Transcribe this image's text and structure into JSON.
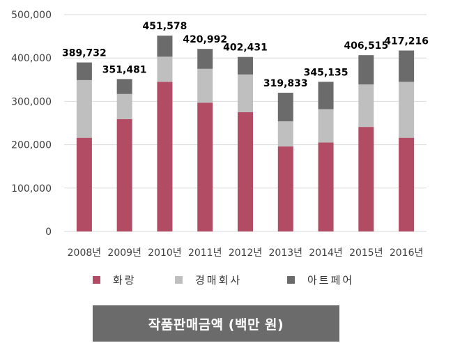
{
  "chart_data": {
    "type": "bar",
    "stacked": true,
    "categories": [
      "2008년",
      "2009년",
      "2010년",
      "2011년",
      "2012년",
      "2013년",
      "2014년",
      "2015년",
      "2016년"
    ],
    "series": [
      {
        "name": "화랑",
        "color": "#b24b64",
        "values": [
          216000,
          259000,
          345000,
          297000,
          275000,
          196000,
          205000,
          241000,
          216000
        ]
      },
      {
        "name": "경매회사",
        "color": "#bfbfbf",
        "values": [
          133000,
          58000,
          58000,
          78000,
          87000,
          58000,
          77000,
          98000,
          129000
        ]
      },
      {
        "name": "아트페어",
        "color": "#6b6b6b",
        "values": [
          40732,
          34481,
          48578,
          45992,
          40431,
          65833,
          63135,
          67515,
          72216
        ]
      }
    ],
    "totals": [
      "389,732",
      "351,481",
      "451,578",
      "420,992",
      "402,431",
      "319,833",
      "345,135",
      "406,515",
      "417,216"
    ],
    "yticks": [
      "0",
      "100,000",
      "200,000",
      "300,000",
      "400,000",
      "500,000"
    ],
    "ylim": [
      0,
      500000
    ],
    "grid": true,
    "legend_position": "bottom",
    "caption": "작품판매금액 (백만 원)",
    "caption_color": "#6b6b6b"
  }
}
